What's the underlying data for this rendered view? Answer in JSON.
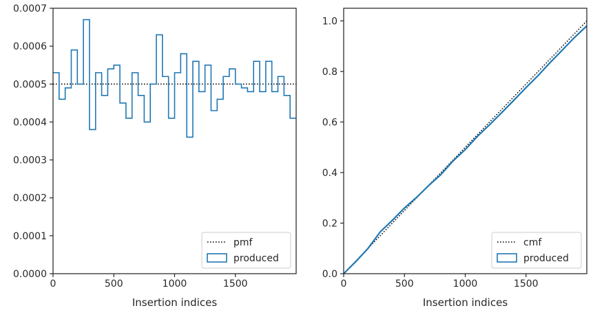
{
  "chart_data": [
    {
      "type": "line",
      "xlabel": "Insertion indices",
      "ylabel": "",
      "xlim": [
        0,
        2000
      ],
      "ylim": [
        0,
        0.0007
      ],
      "x_ticks": [
        0,
        500,
        1000,
        1500
      ],
      "x_tick_labels": [
        "0",
        "500",
        "1000",
        "1500"
      ],
      "y_ticks": [
        0,
        0.0001,
        0.0002,
        0.0003,
        0.0004,
        0.0005,
        0.0006,
        0.0007
      ],
      "y_tick_labels": [
        "0.0000",
        "0.0001",
        "0.0002",
        "0.0003",
        "0.0004",
        "0.0005",
        "0.0006",
        "0.0007"
      ],
      "grid": false,
      "legend_position": "lower-right",
      "series": [
        {
          "name": "pmf",
          "style": "dotted",
          "color": "#000000",
          "x": [
            0,
            2000
          ],
          "y": [
            0.0005,
            0.0005
          ]
        },
        {
          "name": "produced",
          "style": "step",
          "color": "#1f77b4",
          "bin_width": 50,
          "bin_starts": [
            0,
            50,
            100,
            150,
            200,
            250,
            300,
            350,
            400,
            450,
            500,
            550,
            600,
            650,
            700,
            750,
            800,
            850,
            900,
            950,
            1000,
            1050,
            1100,
            1150,
            1200,
            1250,
            1300,
            1350,
            1400,
            1450,
            1500,
            1550,
            1600,
            1650,
            1700,
            1750,
            1800,
            1850,
            1900,
            1950
          ],
          "values": [
            0.00053,
            0.00046,
            0.00049,
            0.00059,
            0.0005,
            0.00067,
            0.00038,
            0.00053,
            0.00047,
            0.00054,
            0.00055,
            0.00045,
            0.00041,
            0.00053,
            0.00047,
            0.0004,
            0.0005,
            0.00063,
            0.00052,
            0.00041,
            0.00053,
            0.00058,
            0.00036,
            0.00056,
            0.00048,
            0.00055,
            0.00043,
            0.00046,
            0.00052,
            0.00054,
            0.0005,
            0.00049,
            0.00048,
            0.00056,
            0.00048,
            0.00056,
            0.00048,
            0.00052,
            0.00047,
            0.00041
          ]
        }
      ]
    },
    {
      "type": "line",
      "xlabel": "Insertion indices",
      "ylabel": "",
      "xlim": [
        0,
        2000
      ],
      "ylim": [
        0,
        1.05
      ],
      "x_ticks": [
        0,
        500,
        1000,
        1500
      ],
      "x_tick_labels": [
        "0",
        "500",
        "1000",
        "1500"
      ],
      "y_ticks": [
        0,
        0.2,
        0.4,
        0.6,
        0.8,
        1.0
      ],
      "y_tick_labels": [
        "0.0",
        "0.2",
        "0.4",
        "0.6",
        "0.8",
        "1.0"
      ],
      "grid": false,
      "legend_position": "lower-right",
      "series": [
        {
          "name": "cmf",
          "style": "dotted",
          "color": "#000000",
          "x": [
            0,
            2000
          ],
          "y": [
            0,
            1.0
          ]
        },
        {
          "name": "produced",
          "style": "line",
          "color": "#1f77b4",
          "x": [
            0,
            100,
            200,
            300,
            400,
            500,
            600,
            700,
            800,
            900,
            1000,
            1100,
            1200,
            1300,
            1400,
            1500,
            1600,
            1700,
            1800,
            1900,
            2000
          ],
          "y": [
            0,
            0.048,
            0.1,
            0.165,
            0.211,
            0.26,
            0.302,
            0.349,
            0.392,
            0.446,
            0.491,
            0.543,
            0.589,
            0.637,
            0.686,
            0.736,
            0.784,
            0.836,
            0.885,
            0.935,
            0.98
          ]
        }
      ]
    }
  ]
}
